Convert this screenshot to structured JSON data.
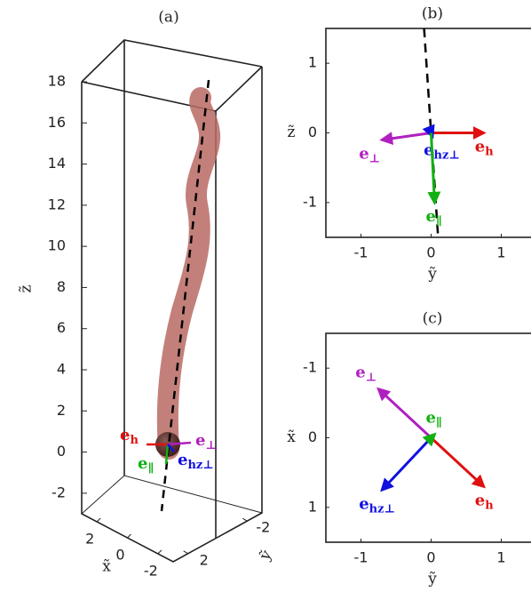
{
  "chart_data": [
    {
      "type": "3d-line",
      "title": "(a)",
      "zlabel": "z̃",
      "xlabel": "x̃",
      "ylabel": "ỹ",
      "zlim": [
        -3,
        18
      ],
      "zticks": [
        -2,
        0,
        2,
        4,
        6,
        8,
        10,
        12,
        14,
        16,
        18
      ],
      "xlim": [
        3,
        -3
      ],
      "xticks": [
        2,
        0,
        -2
      ],
      "ylim": [
        3,
        -3
      ],
      "yticks": [
        2,
        -2
      ],
      "vectors": [
        {
          "color": "#e01010",
          "label": {
            "base": "e",
            "sub": "h"
          }
        },
        {
          "color": "#b020c0",
          "label": {
            "base": "e",
            "sub": "⊥"
          }
        },
        {
          "color": "#10b010",
          "label": {
            "base": "e",
            "sub": "∥"
          }
        },
        {
          "color": "#1010e0",
          "label": {
            "base": "e",
            "sub": "hz⊥"
          }
        }
      ]
    },
    {
      "type": "vector",
      "title": "(b)",
      "xlabel": "ỹ",
      "ylabel": "z̃",
      "xlim": [
        -1.5,
        1.5
      ],
      "ylim": [
        -1.5,
        1.5
      ],
      "xticks": [
        -1,
        0,
        1
      ],
      "yticks": [
        -1,
        0,
        1
      ],
      "y_reversed": false,
      "axis_line": {
        "x": [
          -0.1,
          0.1
        ],
        "y": [
          1.5,
          -1.5
        ]
      },
      "vectors": [
        {
          "color": "#e01010",
          "x": [
            0,
            0.75
          ],
          "y": [
            0,
            0
          ],
          "label": {
            "base": "e",
            "sub": "h"
          }
        },
        {
          "color": "#b020c0",
          "x": [
            0,
            -0.7
          ],
          "y": [
            0,
            -0.1
          ],
          "label": {
            "base": "e",
            "sub": "⊥"
          }
        },
        {
          "color": "#1010e0",
          "x": [
            0,
            0.02
          ],
          "y": [
            0,
            -0.05
          ],
          "label": {
            "base": "e",
            "sub": "hz⊥"
          }
        },
        {
          "color": "#10b010",
          "x": [
            0,
            0.05
          ],
          "y": [
            0,
            -1.0
          ],
          "label": {
            "base": "e",
            "sub": "∥"
          }
        }
      ]
    },
    {
      "type": "vector",
      "title": "(c)",
      "xlabel": "ỹ",
      "ylabel": "x̃",
      "xlim": [
        -1.5,
        1.5
      ],
      "ylim": [
        -1.5,
        1.5
      ],
      "xticks": [
        -1,
        0,
        1
      ],
      "yticks": [
        -1,
        0,
        1
      ],
      "y_reversed": true,
      "vectors": [
        {
          "color": "#b020c0",
          "x": [
            0,
            -0.75
          ],
          "y": [
            0,
            -0.7
          ],
          "label": {
            "base": "e",
            "sub": "⊥"
          }
        },
        {
          "color": "#e01010",
          "x": [
            0,
            0.75
          ],
          "y": [
            0,
            0.7
          ],
          "label": {
            "base": "e",
            "sub": "h"
          }
        },
        {
          "color": "#1010e0",
          "x": [
            0,
            -0.7
          ],
          "y": [
            0,
            0.75
          ],
          "label": {
            "base": "e",
            "sub": "hz⊥"
          }
        },
        {
          "color": "#10b010",
          "x": [
            0,
            0.05
          ],
          "y": [
            0,
            -0.05
          ],
          "label": {
            "base": "e",
            "sub": "∥"
          }
        }
      ]
    }
  ]
}
